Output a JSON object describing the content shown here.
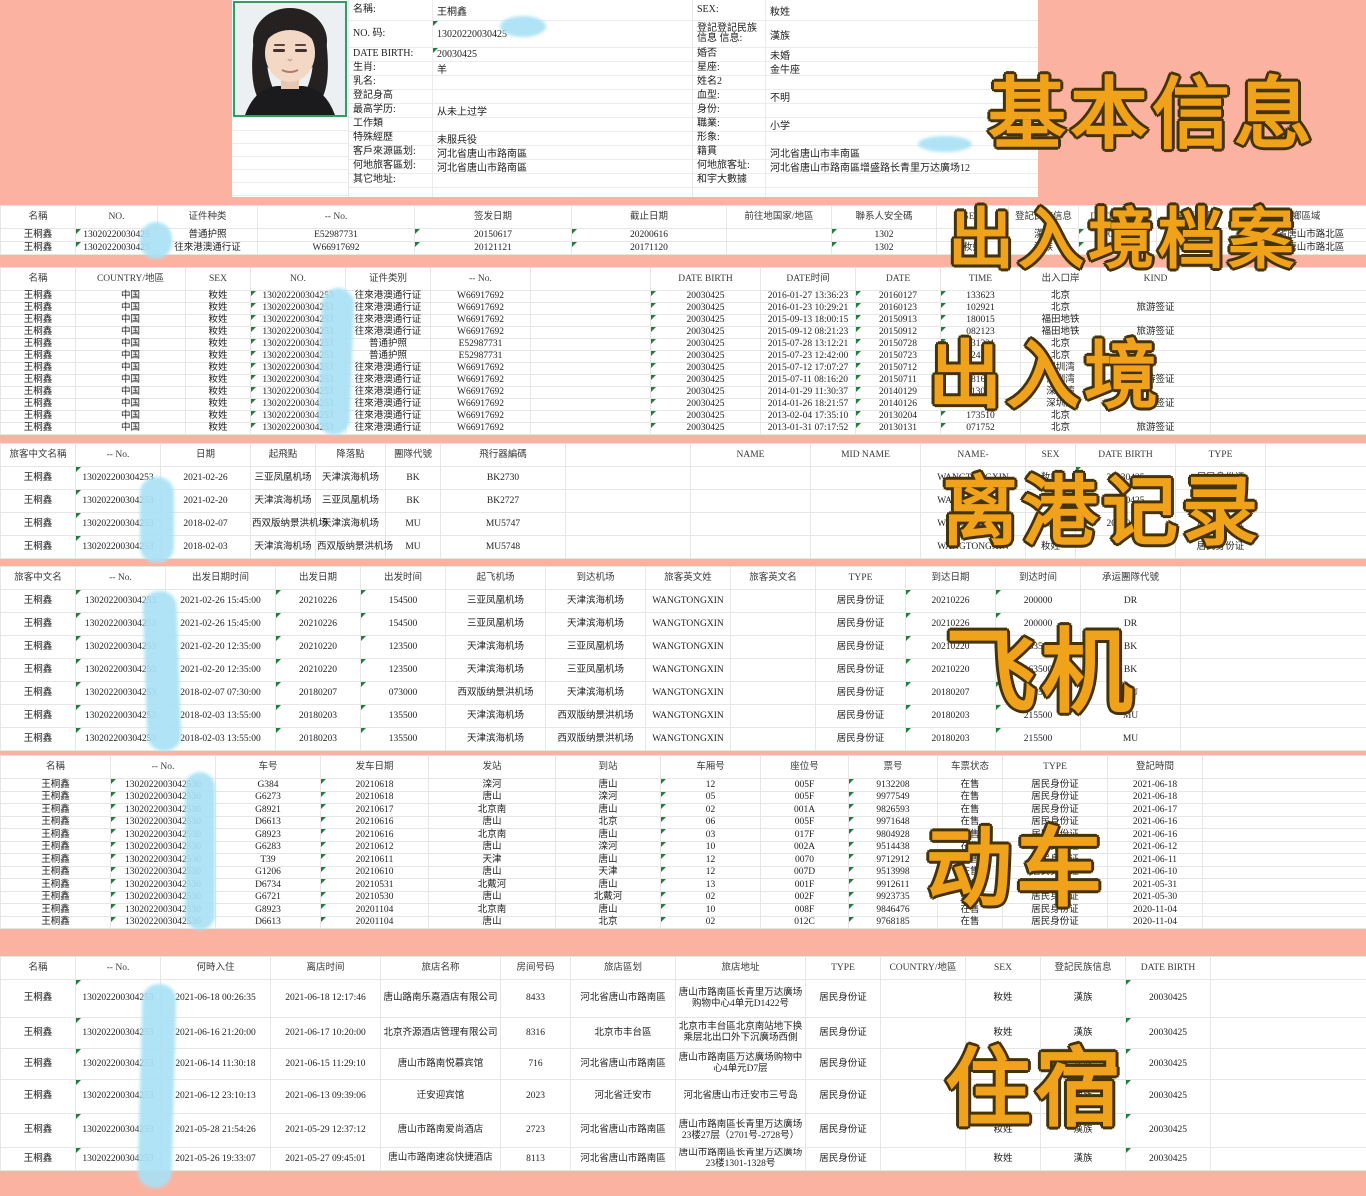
{
  "colors": {
    "background_salmon": "#fbb2a0",
    "overlay_gold": "#f0a21b",
    "overlay_outline": "#463305",
    "redaction_blue": "#a9e1f5",
    "flag_green": "#217e3b",
    "photo_border_green": "#2f9e63"
  },
  "overlays": [
    {
      "text": "基本信息"
    },
    {
      "text": "出入境档案"
    },
    {
      "text": "出入境"
    },
    {
      "text": "离港记录"
    },
    {
      "text": "飞机"
    },
    {
      "text": "动车"
    },
    {
      "text": "住宿"
    }
  ],
  "profile": {
    "left_fields": [
      {
        "label": "名稱:",
        "value": "王桐鑫",
        "flag": false
      },
      {
        "label": "NO. 码:",
        "value": "13020220030425",
        "flag": true
      },
      {
        "label": "DATE BIRTH:",
        "value": "20030425",
        "flag": true
      },
      {
        "label": "生肖:",
        "value": "羊",
        "flag": false
      },
      {
        "label": "乳名:",
        "value": "",
        "flag": false
      },
      {
        "label": "登記身高",
        "value": "",
        "flag": false
      },
      {
        "label": "最高学历:",
        "value": "从未上过学",
        "flag": false
      },
      {
        "label": "工作類",
        "value": "",
        "flag": false
      },
      {
        "label": "特殊經歷",
        "value": "未服兵役",
        "flag": false
      },
      {
        "label": "客戶來源區划:",
        "value": "河北省唐山市路南區",
        "flag": false
      },
      {
        "label": "何地旅客區划:",
        "value": "河北省唐山市路南區",
        "flag": false
      },
      {
        "label": "其它地址:",
        "value": "",
        "flag": false
      },
      {
        "label": "",
        "value": "",
        "flag": false
      },
      {
        "label": "",
        "value": "",
        "flag": false
      }
    ],
    "right_fields": [
      {
        "label": "SEX:",
        "value": "籹姓",
        "flag": false
      },
      {
        "label": "登記登記民族信息 信息:",
        "value": "漢族",
        "flag": false
      },
      {
        "label": "婚否",
        "value": "未婚",
        "flag": false
      },
      {
        "label": "星座:",
        "value": "金牛座",
        "flag": false
      },
      {
        "label": "姓名2",
        "value": "",
        "flag": false
      },
      {
        "label": "血型:",
        "value": "不明",
        "flag": false
      },
      {
        "label": "身份:",
        "value": "",
        "flag": false
      },
      {
        "label": "職業:",
        "value": "小学",
        "flag": false
      },
      {
        "label": "形象:",
        "value": "",
        "flag": false
      },
      {
        "label": "籍貫",
        "value": "河北省唐山市丰南區",
        "flag": false
      },
      {
        "label": "何地旅客址:",
        "value": "河北省唐山市路南區增盛路长青里万达廣场12",
        "flag": false
      },
      {
        "label": "和宇大數據",
        "value": "",
        "flag": false
      },
      {
        "label": "",
        "value": "",
        "flag": false
      },
      {
        "label": "",
        "value": "",
        "flag": false
      }
    ]
  },
  "tables": [
    {
      "name": "exit-entry-archive",
      "headers": [
        "名稱",
        "NO.",
        "证件种类",
        "-- No.",
        "签发日期",
        "截止日期",
        "前往地国家/地區",
        "聯系人安全碼",
        "SEX",
        "登記民族信息",
        "DATE BIRTH",
        "国籍/地區",
        "城鄉區域"
      ],
      "flag_cols": [
        1,
        4,
        5,
        7,
        10
      ],
      "rows": [
        [
          "王桐鑫",
          "13020220030425",
          "普通护照",
          "E52987731",
          "20150617",
          "20200616",
          "",
          "1302",
          "籹姓",
          "漢族",
          "20030425",
          "中国",
          "河北省唐山市路北區"
        ],
        [
          "王桐鑫",
          "13020220030425",
          "往來港澳通行证",
          "W66917692",
          "20121121",
          "20171120",
          "",
          "1302",
          "籹姓",
          "漢族",
          "20030425",
          "中国",
          "河北省唐山市路北區"
        ]
      ]
    },
    {
      "name": "exit-entry-records",
      "headers": [
        "名稱",
        "COUNTRY/地區",
        "SEX",
        "NO.",
        "证件类別",
        "-- No.",
        "",
        "DATE BIRTH",
        "DATE时间",
        "DATE",
        "TIME",
        "出入口岸",
        "KIND",
        ""
      ],
      "flag_cols": [
        3,
        7,
        9,
        10
      ],
      "rows": [
        [
          "王桐鑫",
          "中国",
          "籹姓",
          "130202200304253",
          "往來港澳通行证",
          "W66917692",
          "",
          "20030425",
          "2016-01-27 13:36:23",
          "20160127",
          "133623",
          "北京",
          "",
          ""
        ],
        [
          "王桐鑫",
          "中国",
          "籹姓",
          "130202200304253",
          "往來港澳通行证",
          "W66917692",
          "",
          "20030425",
          "2016-01-23 10:29:21",
          "20160123",
          "102921",
          "北京",
          "旅游签证",
          ""
        ],
        [
          "王桐鑫",
          "中国",
          "籹姓",
          "130202200304253",
          "往來港澳通行证",
          "W66917692",
          "",
          "20030425",
          "2015-09-13 18:00:15",
          "20150913",
          "180015",
          "福田地铁",
          "",
          ""
        ],
        [
          "王桐鑫",
          "中国",
          "籹姓",
          "130202200304253",
          "往來港澳通行证",
          "W66917692",
          "",
          "20030425",
          "2015-09-12 08:21:23",
          "20150912",
          "082123",
          "福田地铁",
          "旅游签证",
          ""
        ],
        [
          "王桐鑫",
          "中国",
          "籹姓",
          "130202200304253",
          "普通护照",
          "E52987731",
          "",
          "20030425",
          "2015-07-28 13:12:21",
          "20150728",
          "131221",
          "北京",
          "",
          ""
        ],
        [
          "王桐鑫",
          "中国",
          "籹姓",
          "130202200304253",
          "普通护照",
          "E52987731",
          "",
          "20030425",
          "2015-07-23 12:42:00",
          "20150723",
          "124200",
          "北京",
          "",
          ""
        ],
        [
          "王桐鑫",
          "中国",
          "籹姓",
          "130202200304253",
          "往來港澳通行证",
          "W66917692",
          "",
          "20030425",
          "2015-07-12 17:07:27",
          "20150712",
          "170727",
          "深圳湾",
          "",
          ""
        ],
        [
          "王桐鑫",
          "中国",
          "籹姓",
          "130202200304253",
          "往來港澳通行证",
          "W66917692",
          "",
          "20030425",
          "2015-07-11 08:16:20",
          "20150711",
          "081620",
          "深圳湾",
          "旅游签证",
          ""
        ],
        [
          "王桐鑫",
          "中国",
          "籹姓",
          "130202200304253",
          "往來港澳通行证",
          "W66917692",
          "",
          "20030425",
          "2014-01-29 11:30:37",
          "20140129",
          "113037",
          "深圳湾",
          "",
          ""
        ],
        [
          "王桐鑫",
          "中国",
          "籹姓",
          "130202200304253",
          "往來港澳通行证",
          "W66917692",
          "",
          "20030425",
          "2014-01-26 18:21:57",
          "20140126",
          "182157",
          "深圳湾",
          "旅游签证",
          ""
        ],
        [
          "王桐鑫",
          "中国",
          "籹姓",
          "130202200304253",
          "往來港澳通行证",
          "W66917692",
          "",
          "20030425",
          "2013-02-04 17:35:10",
          "20130204",
          "173510",
          "北京",
          "",
          ""
        ],
        [
          "王桐鑫",
          "中国",
          "籹姓",
          "130202200304253",
          "往來港澳通行证",
          "W66917692",
          "",
          "20030425",
          "2013-01-31 07:17:52",
          "20130131",
          "071752",
          "北京",
          "旅游签证",
          ""
        ]
      ]
    },
    {
      "name": "departure-records",
      "headers": [
        "旅客中文名稱",
        "-- No.",
        "日期",
        "起飛點",
        "降落點",
        "團隊代號",
        "飛行器編碼",
        "",
        "NAME",
        "MID NAME",
        "NAME-",
        "SEX",
        "DATE BIRTH",
        "TYPE",
        ""
      ],
      "flag_cols": [
        1,
        12
      ],
      "rows": [
        [
          "王桐鑫",
          "130202200304253",
          "2021-02-26",
          "三亚凤凰机场",
          "天津滨海机场",
          "BK",
          "BK2730",
          "",
          "",
          "",
          "WANGTONGXIN",
          "籹姓",
          "20030425",
          "居民身份证",
          ""
        ],
        [
          "王桐鑫",
          "130202200304253",
          "2021-02-20",
          "天津滨海机场",
          "三亚凤凰机场",
          "BK",
          "BK2727",
          "",
          "",
          "",
          "WANGTONGXIN",
          "籹姓",
          "20030425",
          "居民身份证",
          ""
        ],
        [
          "王桐鑫",
          "130202200304253",
          "2018-02-07",
          "西双版纳景洪机场",
          "天津滨海机场",
          "MU",
          "MU5747",
          "",
          "",
          "",
          "WANGTONGXIN",
          "籹姓",
          "20030425",
          "居民身份证",
          ""
        ],
        [
          "王桐鑫",
          "130202200304253",
          "2018-02-03",
          "天津滨海机场",
          "西双版纳景洪机场",
          "MU",
          "MU5748",
          "",
          "",
          "",
          "WANGTONGXIN",
          "籹姓",
          "",
          "居民身份证",
          ""
        ]
      ]
    },
    {
      "name": "flights",
      "headers": [
        "旅客中文名",
        "-- No.",
        "出发日期时间",
        "出发日期",
        "出发时间",
        "起飞机场",
        "到达机场",
        "旅客英文姓",
        "旅客英文名",
        "TYPE",
        "到达日期",
        "到达时间",
        "承运團隊代號",
        ""
      ],
      "flag_cols": [
        1,
        3,
        4,
        10,
        11
      ],
      "rows": [
        [
          "王桐鑫",
          "130202200304253",
          "2021-02-26 15:45:00",
          "20210226",
          "154500",
          "三亚凤凰机场",
          "天津滨海机场",
          "WANGTONGXIN",
          "",
          "居民身份证",
          "20210226",
          "200000",
          "DR",
          ""
        ],
        [
          "王桐鑫",
          "130202200304253",
          "2021-02-26 15:45:00",
          "20210226",
          "154500",
          "三亚凤凰机场",
          "天津滨海机场",
          "WANGTONGXIN",
          "",
          "居民身份证",
          "20210226",
          "200000",
          "DR",
          ""
        ],
        [
          "王桐鑫",
          "130202200304253",
          "2021-02-20 12:35:00",
          "20210220",
          "123500",
          "天津滨海机场",
          "三亚凤凰机场",
          "WANGTONGXIN",
          "",
          "居民身份证",
          "20210220",
          "163500",
          "BK",
          ""
        ],
        [
          "王桐鑫",
          "130202200304253",
          "2021-02-20 12:35:00",
          "20210220",
          "123500",
          "天津滨海机场",
          "三亚凤凰机场",
          "WANGTONGXIN",
          "",
          "居民身份证",
          "20210220",
          "163500",
          "BK",
          ""
        ],
        [
          "王桐鑫",
          "130202200304253",
          "2018-02-07 07:30:00",
          "20180207",
          "073000",
          "西双版纳景洪机场",
          "天津滨海机场",
          "WANGTONGXIN",
          "",
          "居民身份证",
          "20180207",
          "125500",
          "MU",
          ""
        ],
        [
          "王桐鑫",
          "130202200304253",
          "2018-02-03 13:55:00",
          "20180203",
          "135500",
          "天津滨海机场",
          "西双版纳景洪机场",
          "WANGTONGXIN",
          "",
          "居民身份证",
          "20180203",
          "215500",
          "MU",
          ""
        ],
        [
          "王桐鑫",
          "130202200304253",
          "2018-02-03 13:55:00",
          "20180203",
          "135500",
          "天津滨海机场",
          "西双版纳景洪机场",
          "WANGTONGXIN",
          "",
          "居民身份证",
          "20180203",
          "215500",
          "MU",
          ""
        ]
      ]
    },
    {
      "name": "high-speed-rail",
      "headers": [
        "名稱",
        "-- No.",
        "车号",
        "发车日期",
        "发站",
        "到站",
        "车厢号",
        "座位号",
        "票号",
        "车票状态",
        "TYPE",
        "登記時間",
        ""
      ],
      "flag_cols": [
        1,
        3,
        6,
        8
      ],
      "rows": [
        [
          "王桐鑫",
          "1302022003042530",
          "G384",
          "20210618",
          "滦河",
          "唐山",
          "12",
          "005F",
          "9132208",
          "在售",
          "居民身份证",
          "2021-06-18",
          ""
        ],
        [
          "王桐鑫",
          "1302022003042530",
          "G6273",
          "20210618",
          "唐山",
          "滦河",
          "05",
          "005F",
          "9977549",
          "在售",
          "居民身份证",
          "2021-06-18",
          ""
        ],
        [
          "王桐鑫",
          "1302022003042530",
          "G8921",
          "20210617",
          "北京南",
          "唐山",
          "02",
          "001A",
          "9826593",
          "在售",
          "居民身份证",
          "2021-06-17",
          ""
        ],
        [
          "王桐鑫",
          "1302022003042530",
          "D6613",
          "20210616",
          "唐山",
          "北京",
          "06",
          "005F",
          "9971648",
          "在售",
          "居民身份证",
          "2021-06-16",
          ""
        ],
        [
          "王桐鑫",
          "1302022003042530",
          "G8923",
          "20210616",
          "北京南",
          "唐山",
          "03",
          "017F",
          "9804928",
          "在售",
          "居民身份证",
          "2021-06-16",
          ""
        ],
        [
          "王桐鑫",
          "1302022003042530",
          "G6283",
          "20210612",
          "唐山",
          "滦河",
          "10",
          "002A",
          "9514438",
          "在售",
          "居民身份证",
          "2021-06-12",
          ""
        ],
        [
          "王桐鑫",
          "1302022003042530",
          "T39",
          "20210611",
          "天津",
          "唐山",
          "12",
          "0070",
          "9712912",
          "在售",
          "居民身份证",
          "2021-06-11",
          ""
        ],
        [
          "王桐鑫",
          "1302022003042530",
          "G1206",
          "20210610",
          "唐山",
          "天津",
          "12",
          "007D",
          "9513998",
          "在售",
          "居民身份证",
          "2021-06-10",
          ""
        ],
        [
          "王桐鑫",
          "1302022003042530",
          "D6734",
          "20210531",
          "北戴河",
          "唐山",
          "13",
          "001F",
          "9912611",
          "在售",
          "居民身份证",
          "2021-05-31",
          ""
        ],
        [
          "王桐鑫",
          "1302022003042530",
          "G6721",
          "20210530",
          "唐山",
          "北戴河",
          "02",
          "002F",
          "9923735",
          "在售",
          "居民身份证",
          "2021-05-30",
          ""
        ],
        [
          "王桐鑫",
          "1302022003042530",
          "G8923",
          "20201104",
          "北京南",
          "唐山",
          "10",
          "008F",
          "9846476",
          "在售",
          "居民身份证",
          "2020-11-04",
          ""
        ],
        [
          "王桐鑫",
          "1302022003042530",
          "D6613",
          "20201104",
          "唐山",
          "北京",
          "02",
          "012C",
          "9768185",
          "在售",
          "居民身份证",
          "2020-11-04",
          ""
        ]
      ]
    },
    {
      "name": "accommodation",
      "headers": [
        "名稱",
        "-- No.",
        "何時入住",
        "离店时间",
        "旅店名称",
        "房间号码",
        "旅店區划",
        "旅店地址",
        "TYPE",
        "COUNTRY/地區",
        "SEX",
        "登記民族信息",
        "DATE BIRTH",
        ""
      ],
      "flag_cols": [
        1,
        12
      ],
      "rows": [
        [
          "王桐鑫",
          "130202200304253",
          "2021-06-18 00:26:35",
          "2021-06-18 12:17:46",
          "唐山路南乐嘉酒店有限公司",
          "8433",
          "河北省唐山市路南區",
          "唐山市路南區长青里万达廣场购物中心4单元D1422号",
          "居民身份证",
          "",
          "籹姓",
          "漢族",
          "20030425",
          ""
        ],
        [
          "王桐鑫",
          "130202200304253",
          "2021-06-16 21:20:00",
          "2021-06-17 10:20:00",
          "北京齐源酒店管理有限公司",
          "8316",
          "北京市丰台區",
          "北京市丰台區北京南站地下换乘层北出口外下沉廣场西側",
          "居民身份证",
          "",
          "籹姓",
          "漢族",
          "20030425",
          ""
        ],
        [
          "王桐鑫",
          "130202200304253",
          "2021-06-14 11:30:18",
          "2021-06-15 11:29:10",
          "唐山市路南悦慕宾馆",
          "716",
          "河北省唐山市路南區",
          "唐山市路南區万达廣场购物中心4单元D7层",
          "居民身份证",
          "",
          "籹姓",
          "漢族",
          "20030425",
          ""
        ],
        [
          "王桐鑫",
          "130202200304253",
          "2021-06-12 23:10:13",
          "2021-06-13 09:39:06",
          "迁安迎宾馆",
          "2023",
          "河北省迁安市",
          "河北省唐山市迁安市三号岛",
          "居民身份证",
          "",
          "籹姓",
          "漢族",
          "20030425",
          ""
        ],
        [
          "王桐鑫",
          "130202200304253",
          "2021-05-28 21:54:26",
          "2021-05-29 12:37:12",
          "唐山市路南爱尚酒店",
          "2723",
          "河北省唐山市路南區",
          "唐山市路南區长青里万达廣场23楼27层（2701号-2728号）",
          "居民身份证",
          "",
          "籹姓",
          "漢族",
          "20030425",
          ""
        ],
        [
          "王桐鑫",
          "130202200304253",
          "2021-05-26 19:33:07",
          "2021-05-27 09:45:01",
          "唐山市路南速惢快捷酒店",
          "8113",
          "河北省唐山市路南區",
          "唐山市路南區长青里万达廣场23楼1301-1328号",
          "居民身份证",
          "",
          "籹姓",
          "漢族",
          "20030425",
          ""
        ]
      ]
    }
  ]
}
